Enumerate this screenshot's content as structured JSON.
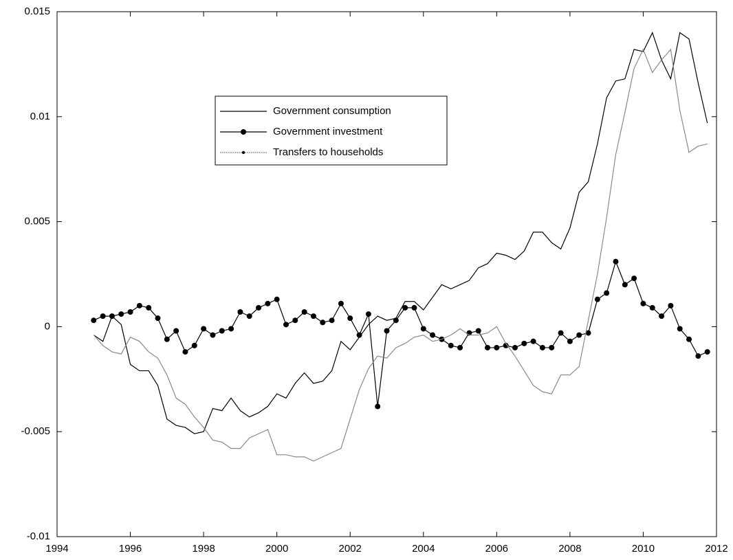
{
  "chart_data": {
    "type": "line",
    "x": [
      1995,
      1995.25,
      1995.5,
      1995.75,
      1996,
      1996.25,
      1996.5,
      1996.75,
      1997,
      1997.25,
      1997.5,
      1997.75,
      1998,
      1998.25,
      1998.5,
      1998.75,
      1999,
      1999.25,
      1999.5,
      1999.75,
      2000,
      2000.25,
      2000.5,
      2000.75,
      2001,
      2001.25,
      2001.5,
      2001.75,
      2002,
      2002.25,
      2002.5,
      2002.75,
      2003,
      2003.25,
      2003.5,
      2003.75,
      2004,
      2004.25,
      2004.5,
      2004.75,
      2005,
      2005.25,
      2005.5,
      2005.75,
      2006,
      2006.25,
      2006.5,
      2006.75,
      2007,
      2007.25,
      2007.5,
      2007.75,
      2008,
      2008.25,
      2008.5,
      2008.75,
      2009,
      2009.25,
      2009.5,
      2009.75,
      2010,
      2010.25,
      2010.5,
      2010.75,
      2011,
      2011.25,
      2011.5,
      2011.75
    ],
    "series": [
      {
        "name": "Government consumption",
        "color": "#000000",
        "marker": "none",
        "values": [
          -0.0004,
          -0.0007,
          0.0005,
          0.0001,
          -0.0018,
          -0.0021,
          -0.0021,
          -0.0028,
          -0.0044,
          -0.0047,
          -0.0048,
          -0.0051,
          -0.005,
          -0.0039,
          -0.004,
          -0.0034,
          -0.004,
          -0.0043,
          -0.0041,
          -0.0038,
          -0.0032,
          -0.0034,
          -0.0027,
          -0.0022,
          -0.0027,
          -0.0026,
          -0.0021,
          -0.0007,
          -0.0011,
          -0.0005,
          0.0001,
          0.0005,
          0.0003,
          0.0004,
          0.0012,
          0.0012,
          0.0008,
          0.0014,
          0.002,
          0.0018,
          0.002,
          0.0022,
          0.0028,
          0.003,
          0.0035,
          0.0034,
          0.0032,
          0.0036,
          0.0045,
          0.0045,
          0.004,
          0.0037,
          0.0047,
          0.0064,
          0.0069,
          0.0087,
          0.0109,
          0.0117,
          0.0118,
          0.0132,
          0.0131,
          0.014,
          0.0127,
          0.0118,
          0.014,
          0.0137,
          0.0116,
          0.0097
        ]
      },
      {
        "name": "Government investment",
        "color": "#000000",
        "marker": "big",
        "values": [
          0.0003,
          0.0005,
          0.0005,
          0.0006,
          0.0007,
          0.001,
          0.0009,
          0.0004,
          -0.0006,
          -0.0002,
          -0.0012,
          -0.0009,
          -0.0001,
          -0.0004,
          -0.0002,
          -0.0001,
          0.0007,
          0.0005,
          0.0009,
          0.0011,
          0.0013,
          0.0001,
          0.0003,
          0.0007,
          0.0005,
          0.0002,
          0.0003,
          0.0011,
          0.0004,
          -0.0004,
          0.0006,
          -0.0038,
          -0.0002,
          0.0003,
          0.0009,
          0.0009,
          -0.0001,
          -0.0004,
          -0.0006,
          -0.0009,
          -0.001,
          -0.0003,
          -0.0002,
          -0.001,
          -0.001,
          -0.0009,
          -0.001,
          -0.0008,
          -0.0007,
          -0.001,
          -0.001,
          -0.0003,
          -0.0007,
          -0.0004,
          -0.0003,
          0.0013,
          0.0016,
          0.0031,
          0.002,
          0.0023,
          0.0011,
          0.0009,
          0.0005,
          0.001,
          -0.0001,
          -0.0006,
          -0.0014,
          -0.0012
        ]
      },
      {
        "name": "Transfers to households",
        "color": "#888888",
        "marker": "small",
        "values": [
          -0.0004,
          -0.0009,
          -0.0012,
          -0.0013,
          -0.0005,
          -0.0007,
          -0.0012,
          -0.0015,
          -0.0023,
          -0.0034,
          -0.0037,
          -0.0043,
          -0.0048,
          -0.0054,
          -0.0055,
          -0.0058,
          -0.0058,
          -0.0053,
          -0.0051,
          -0.0049,
          -0.0061,
          -0.0061,
          -0.0062,
          -0.0062,
          -0.0064,
          -0.0062,
          -0.006,
          -0.0058,
          -0.0044,
          -0.003,
          -0.002,
          -0.0014,
          -0.0015,
          -0.001,
          -0.0008,
          -0.0005,
          -0.0004,
          -0.0007,
          -0.0006,
          -0.0004,
          -0.0001,
          -0.0004,
          -0.0004,
          -0.0003,
          0,
          -0.0008,
          -0.0014,
          -0.0021,
          -0.0028,
          -0.0031,
          -0.0032,
          -0.0023,
          -0.0023,
          -0.0019,
          0.0003,
          0.0025,
          0.0052,
          0.0082,
          0.0102,
          0.0123,
          0.0132,
          0.0121,
          0.0127,
          0.0132,
          0.0103,
          0.0083,
          0.0086,
          0.0087
        ]
      }
    ],
    "xlim": [
      1994,
      2012
    ],
    "xticks": [
      1994,
      1996,
      1998,
      2000,
      2002,
      2004,
      2006,
      2008,
      2010,
      2012
    ],
    "ylim": [
      -0.01,
      0.015
    ],
    "yticks": [
      -0.01,
      -0.005,
      0,
      0.005,
      0.01,
      0.015
    ],
    "grid": false
  }
}
